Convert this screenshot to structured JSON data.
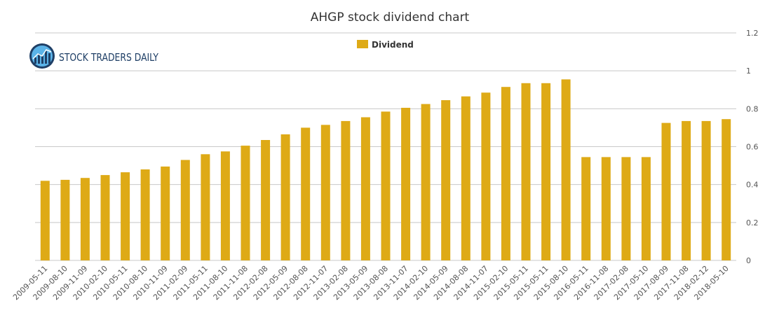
{
  "logo": {
    "text": "STOCK TRADERS DAILY",
    "color": "#1f3f66",
    "icon": "bar-chart-globe-icon"
  },
  "chart_data": {
    "type": "bar",
    "title": "AHGP stock dividend chart",
    "xlabel": "",
    "ylabel": "",
    "ylim": [
      0,
      1.2
    ],
    "yticks": [
      "0",
      "0.2",
      "0.4",
      "0.6",
      "0.8",
      "1",
      "1.2"
    ],
    "grid": true,
    "legend_position": "top-center",
    "bar_color": "#deaa16",
    "categories": [
      "2009-05-11",
      "2009-08-10",
      "2009-11-09",
      "2010-02-10",
      "2010-05-11",
      "2010-08-10",
      "2010-11-09",
      "2011-02-09",
      "2011-05-11",
      "2011-08-10",
      "2011-11-08",
      "2012-02-08",
      "2012-05-09",
      "2012-08-08",
      "2012-11-07",
      "2013-02-08",
      "2013-05-09",
      "2013-08-08",
      "2013-11-07",
      "2014-02-10",
      "2014-05-09",
      "2014-08-08",
      "2014-11-07",
      "2015-02-10",
      "2015-05-11",
      "2015-05-11",
      "2015-08-10",
      "2016-05-11",
      "2016-11-08",
      "2017-02-08",
      "2017-05-10",
      "2017-08-09",
      "2017-11-08",
      "2018-02-12",
      "2018-05-10"
    ],
    "series": [
      {
        "name": "Dividend",
        "values": [
          0.42,
          0.425,
          0.435,
          0.45,
          0.465,
          0.48,
          0.495,
          0.53,
          0.56,
          0.575,
          0.605,
          0.635,
          0.665,
          0.7,
          0.715,
          0.735,
          0.755,
          0.785,
          0.805,
          0.825,
          0.845,
          0.865,
          0.885,
          0.915,
          0.935,
          0.935,
          0.955,
          0.545,
          0.545,
          0.545,
          0.545,
          0.725,
          0.735,
          0.735,
          0.745
        ]
      }
    ]
  }
}
